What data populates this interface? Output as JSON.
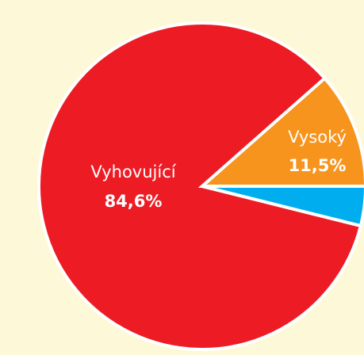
{
  "chart_data": {
    "type": "pie",
    "categories": [
      "Vyhovující",
      "Vysoký",
      null
    ],
    "values": [
      84.6,
      11.5,
      3.9
    ],
    "value_labels": [
      "84,6%",
      "11,5%",
      null
    ],
    "colors": [
      "#ed1c24",
      "#f7941d",
      "#00aeef"
    ]
  }
}
